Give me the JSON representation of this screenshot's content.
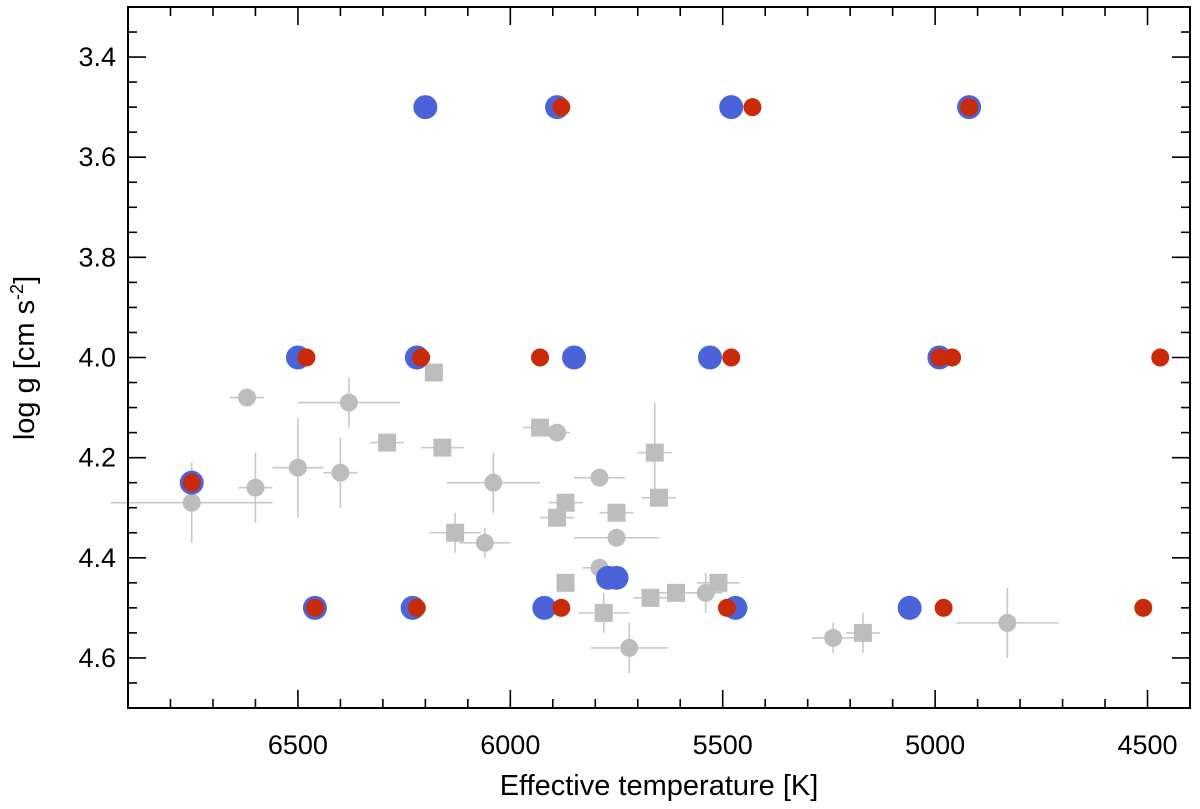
{
  "chart_data": {
    "type": "scatter",
    "title": "",
    "xlabel": "Effective temperature [K]",
    "ylabel": "log g [cm s",
    "ylabel_superscript": "-2",
    "ylabel_suffix": "]",
    "xlim": [
      6900,
      4400
    ],
    "ylim": [
      4.7,
      3.3
    ],
    "x_reversed": true,
    "y_reversed": true,
    "xticks": [
      6500,
      6000,
      5500,
      5000,
      4500
    ],
    "yticks": [
      3.4,
      3.6,
      3.8,
      4.0,
      4.2,
      4.4,
      4.6
    ],
    "grid": false,
    "colors": {
      "blue": "#4b63d9",
      "red": "#c82a0a",
      "gray": "#bdbdbd",
      "gray_error": "#c8c8c8"
    },
    "series": [
      {
        "marker": "circle",
        "color": "#4b63d9",
        "points": [
          {
            "x": 6200,
            "y": 3.5
          },
          {
            "x": 5890,
            "y": 3.5
          },
          {
            "x": 5480,
            "y": 3.5
          },
          {
            "x": 4920,
            "y": 3.5
          },
          {
            "x": 6500,
            "y": 4.0
          },
          {
            "x": 6220,
            "y": 4.0
          },
          {
            "x": 5850,
            "y": 4.0
          },
          {
            "x": 5530,
            "y": 4.0
          },
          {
            "x": 4990,
            "y": 4.0
          },
          {
            "x": 6750,
            "y": 4.25
          },
          {
            "x": 5750,
            "y": 4.44
          },
          {
            "x": 5770,
            "y": 4.44
          },
          {
            "x": 6460,
            "y": 4.5
          },
          {
            "x": 6230,
            "y": 4.5
          },
          {
            "x": 5920,
            "y": 4.5
          },
          {
            "x": 5470,
            "y": 4.5
          },
          {
            "x": 5060,
            "y": 4.5
          }
        ]
      },
      {
        "marker": "circle",
        "color": "#c82a0a",
        "points": [
          {
            "x": 5880,
            "y": 3.5
          },
          {
            "x": 5430,
            "y": 3.5
          },
          {
            "x": 4920,
            "y": 3.5
          },
          {
            "x": 6480,
            "y": 4.0
          },
          {
            "x": 6210,
            "y": 4.0
          },
          {
            "x": 5930,
            "y": 4.0
          },
          {
            "x": 5480,
            "y": 4.0
          },
          {
            "x": 4990,
            "y": 4.0
          },
          {
            "x": 4960,
            "y": 4.0
          },
          {
            "x": 4470,
            "y": 4.0
          },
          {
            "x": 6750,
            "y": 4.25
          },
          {
            "x": 6460,
            "y": 4.5
          },
          {
            "x": 6220,
            "y": 4.5
          },
          {
            "x": 5880,
            "y": 4.5
          },
          {
            "x": 5490,
            "y": 4.5
          },
          {
            "x": 4980,
            "y": 4.5
          },
          {
            "x": 4510,
            "y": 4.5
          }
        ]
      },
      {
        "marker": "circle",
        "color": "#bdbdbd",
        "points": [
          {
            "x": 6620,
            "y": 4.08,
            "xerr": 40,
            "yerr": 0.0
          },
          {
            "x": 6380,
            "y": 4.09,
            "xerr": 120,
            "yerr": 0.05
          },
          {
            "x": 6500,
            "y": 4.22,
            "xerr": 60,
            "yerr": 0.1
          },
          {
            "x": 6400,
            "y": 4.23,
            "xerr": 40,
            "yerr": 0.07
          },
          {
            "x": 6600,
            "y": 4.26,
            "xerr": 40,
            "yerr": 0.07
          },
          {
            "x": 6750,
            "y": 4.29,
            "xerr": 190,
            "yerr": 0.08
          },
          {
            "x": 6040,
            "y": 4.25,
            "xerr": 110,
            "yerr": 0.06
          },
          {
            "x": 6060,
            "y": 4.37,
            "xerr": 60,
            "yerr": 0.03
          },
          {
            "x": 5890,
            "y": 4.15,
            "xerr": 30,
            "yerr": 0.0
          },
          {
            "x": 5790,
            "y": 4.24,
            "xerr": 60,
            "yerr": 0.0
          },
          {
            "x": 5750,
            "y": 4.36,
            "xerr": 100,
            "yerr": 0.0
          },
          {
            "x": 5790,
            "y": 4.42,
            "xerr": 40,
            "yerr": 0.0
          },
          {
            "x": 5540,
            "y": 4.47,
            "xerr": 40,
            "yerr": 0.04
          },
          {
            "x": 5720,
            "y": 4.58,
            "xerr": 90,
            "yerr": 0.05
          },
          {
            "x": 5240,
            "y": 4.56,
            "xerr": 50,
            "yerr": 0.03
          },
          {
            "x": 4830,
            "y": 4.53,
            "xerr": 120,
            "yerr": 0.07
          }
        ]
      },
      {
        "marker": "square",
        "color": "#bdbdbd",
        "points": [
          {
            "x": 6180,
            "y": 4.03,
            "xerr": 0,
            "yerr": 0.0
          },
          {
            "x": 6290,
            "y": 4.17,
            "xerr": 40,
            "yerr": 0.0
          },
          {
            "x": 6160,
            "y": 4.18,
            "xerr": 50,
            "yerr": 0.0
          },
          {
            "x": 5930,
            "y": 4.14,
            "xerr": 40,
            "yerr": 0.0
          },
          {
            "x": 5660,
            "y": 4.19,
            "xerr": 40,
            "yerr": 0.1
          },
          {
            "x": 5650,
            "y": 4.28,
            "xerr": 40,
            "yerr": 0.0
          },
          {
            "x": 5870,
            "y": 4.29,
            "xerr": 40,
            "yerr": 0.0
          },
          {
            "x": 5890,
            "y": 4.32,
            "xerr": 40,
            "yerr": 0.0
          },
          {
            "x": 5750,
            "y": 4.31,
            "xerr": 40,
            "yerr": 0.0
          },
          {
            "x": 6130,
            "y": 4.35,
            "xerr": 60,
            "yerr": 0.04
          },
          {
            "x": 5870,
            "y": 4.45,
            "xerr": 20,
            "yerr": 0.0
          },
          {
            "x": 5780,
            "y": 4.51,
            "xerr": 60,
            "yerr": 0.04
          },
          {
            "x": 5670,
            "y": 4.48,
            "xerr": 40,
            "yerr": 0.0
          },
          {
            "x": 5610,
            "y": 4.47,
            "xerr": 40,
            "yerr": 0.0
          },
          {
            "x": 5510,
            "y": 4.45,
            "xerr": 50,
            "yerr": 0.0
          },
          {
            "x": 5170,
            "y": 4.55,
            "xerr": 40,
            "yerr": 0.04
          }
        ]
      }
    ]
  }
}
